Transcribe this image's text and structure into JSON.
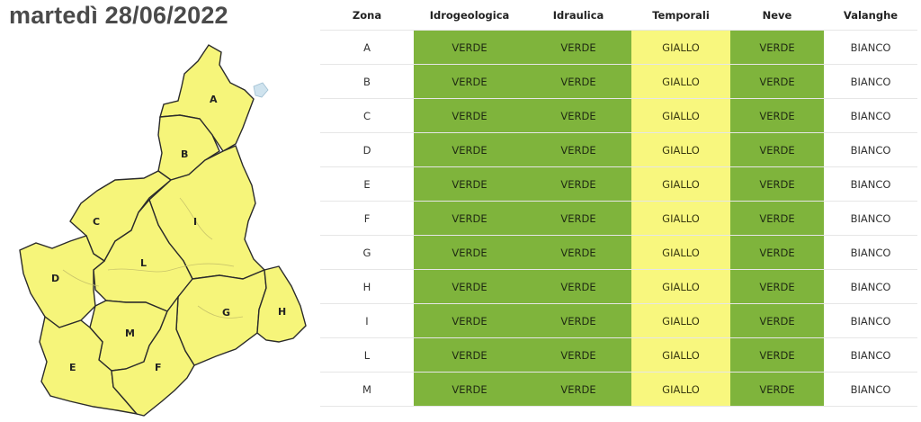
{
  "date_title": "martedì 28/06/2022",
  "colors": {
    "VERDE": "#7fb43c",
    "GIALLO": "#f8f77e",
    "BIANCO": "#ffffff",
    "map_fill": "#f6f57a"
  },
  "map": {
    "zone_labels": [
      "A",
      "B",
      "C",
      "I",
      "L",
      "D",
      "G",
      "H",
      "M",
      "E",
      "F"
    ]
  },
  "table": {
    "headers": [
      "Zona",
      "Idrogeologica",
      "Idraulica",
      "Temporali",
      "Neve",
      "Valanghe"
    ],
    "rows": [
      [
        "A",
        "VERDE",
        "VERDE",
        "GIALLO",
        "VERDE",
        "BIANCO"
      ],
      [
        "B",
        "VERDE",
        "VERDE",
        "GIALLO",
        "VERDE",
        "BIANCO"
      ],
      [
        "C",
        "VERDE",
        "VERDE",
        "GIALLO",
        "VERDE",
        "BIANCO"
      ],
      [
        "D",
        "VERDE",
        "VERDE",
        "GIALLO",
        "VERDE",
        "BIANCO"
      ],
      [
        "E",
        "VERDE",
        "VERDE",
        "GIALLO",
        "VERDE",
        "BIANCO"
      ],
      [
        "F",
        "VERDE",
        "VERDE",
        "GIALLO",
        "VERDE",
        "BIANCO"
      ],
      [
        "G",
        "VERDE",
        "VERDE",
        "GIALLO",
        "VERDE",
        "BIANCO"
      ],
      [
        "H",
        "VERDE",
        "VERDE",
        "GIALLO",
        "VERDE",
        "BIANCO"
      ],
      [
        "I",
        "VERDE",
        "VERDE",
        "GIALLO",
        "VERDE",
        "BIANCO"
      ],
      [
        "L",
        "VERDE",
        "VERDE",
        "GIALLO",
        "VERDE",
        "BIANCO"
      ],
      [
        "M",
        "VERDE",
        "VERDE",
        "GIALLO",
        "VERDE",
        "BIANCO"
      ]
    ]
  }
}
